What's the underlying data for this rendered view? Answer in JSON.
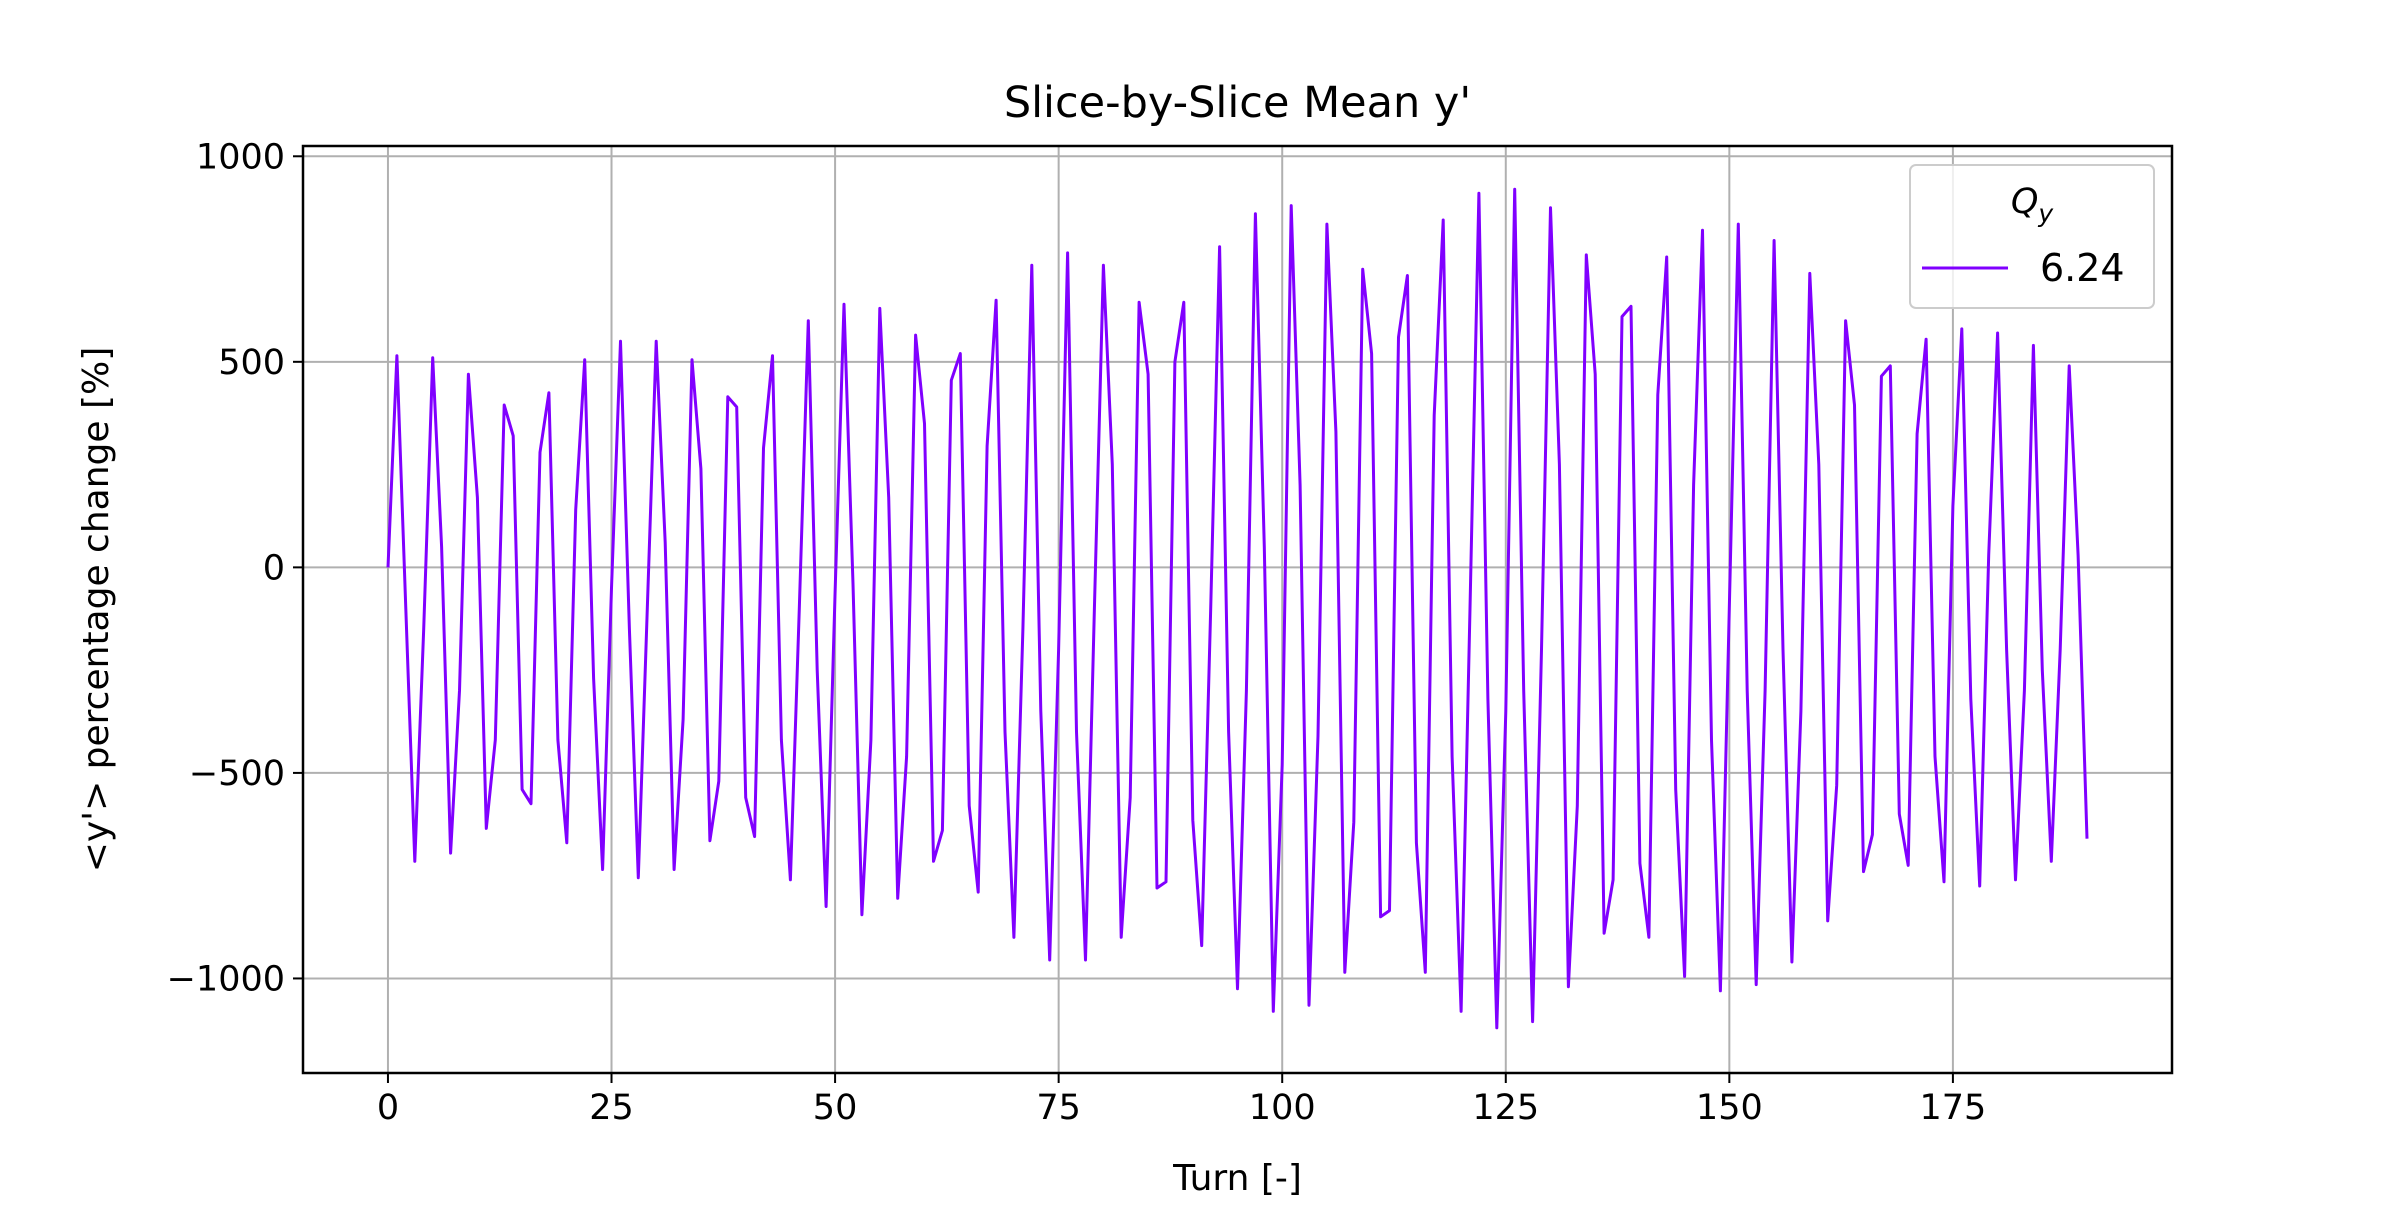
{
  "chart_data": {
    "type": "line",
    "title": "Slice-by-Slice Mean y'",
    "xlabel": "Turn [-]",
    "ylabel": "<y'> percentage change [%]",
    "xlim": [
      -9.5,
      199.5
    ],
    "ylim": [
      -1230,
      1025
    ],
    "xticks": [
      0,
      25,
      50,
      75,
      100,
      125,
      150,
      175
    ],
    "yticks": [
      -1000,
      -500,
      0,
      500,
      1000
    ],
    "xtick_labels": [
      "0",
      "25",
      "50",
      "75",
      "100",
      "125",
      "150",
      "175"
    ],
    "ytick_labels": [
      "−1000",
      "−500",
      "0",
      "500",
      "1000"
    ],
    "grid": true,
    "legend": {
      "placement": "top-right",
      "title_main": "Q",
      "title_sub": "y",
      "entries": [
        "6.24"
      ]
    },
    "series": [
      {
        "name": "6.24",
        "color": "#8000ff",
        "x": [
          0,
          1,
          2,
          3,
          4,
          5,
          6,
          7,
          8,
          9,
          10,
          11,
          12,
          13,
          14,
          15,
          16,
          17,
          18,
          19,
          20,
          21,
          22,
          23,
          24,
          25,
          26,
          27,
          28,
          29,
          30,
          31,
          32,
          33,
          34,
          35,
          36,
          37,
          38,
          39,
          40,
          41,
          42,
          43,
          44,
          45,
          46,
          47,
          48,
          49,
          50,
          51,
          52,
          53,
          54,
          55,
          56,
          57,
          58,
          59,
          60,
          61,
          62,
          63,
          64,
          65,
          66,
          67,
          68,
          69,
          70,
          71,
          72,
          73,
          74,
          75,
          76,
          77,
          78,
          79,
          80,
          81,
          82,
          83,
          84,
          85,
          86,
          87,
          88,
          89,
          90,
          91,
          92,
          93,
          94,
          95,
          96,
          97,
          98,
          99,
          100,
          101,
          102,
          103,
          104,
          105,
          106,
          107,
          108,
          109,
          110,
          111,
          112,
          113,
          114,
          115,
          116,
          117,
          118,
          119,
          120,
          121,
          122,
          123,
          124,
          125,
          126,
          127,
          128,
          129,
          130,
          131,
          132,
          133,
          134,
          135,
          136,
          137,
          138,
          139,
          140,
          141,
          142,
          143,
          144,
          145,
          146,
          147,
          148,
          149,
          150,
          151,
          152,
          153,
          154,
          155,
          156,
          157,
          158,
          159,
          160,
          161,
          162,
          163,
          164,
          165,
          166,
          167,
          168,
          169,
          170,
          171,
          172,
          173,
          174,
          175,
          176,
          177,
          178,
          179,
          180,
          181,
          182,
          183,
          184,
          185,
          186,
          187,
          188,
          189,
          190
        ],
        "y": [
          0,
          515,
          -100,
          -715,
          -150,
          510,
          50,
          -695,
          -300,
          470,
          170,
          -635,
          -420,
          395,
          320,
          -540,
          -575,
          280,
          425,
          -420,
          -670,
          140,
          505,
          -270,
          -735,
          -50,
          550,
          -150,
          -755,
          -100,
          550,
          60,
          -735,
          -370,
          505,
          240,
          -665,
          -520,
          415,
          390,
          -560,
          -655,
          290,
          515,
          -420,
          -760,
          -100,
          600,
          -250,
          -825,
          -60,
          640,
          -40,
          -845,
          -420,
          630,
          170,
          -805,
          -460,
          565,
          350,
          -715,
          -640,
          455,
          520,
          -580,
          -790,
          295,
          650,
          -400,
          -900,
          -150,
          735,
          -350,
          -955,
          -200,
          765,
          -400,
          -955,
          -100,
          735,
          250,
          -900,
          -560,
          645,
          470,
          -780,
          -765,
          500,
          645,
          -615,
          -920,
          -100,
          780,
          -400,
          -1025,
          -300,
          860,
          50,
          -1080,
          -480,
          880,
          200,
          -1065,
          -410,
          835,
          330,
          -985,
          -620,
          725,
          520,
          -850,
          -835,
          560,
          710,
          -670,
          -985,
          370,
          845,
          -460,
          -1080,
          -100,
          910,
          -320,
          -1120,
          -350,
          920,
          -300,
          -1105,
          -200,
          875,
          250,
          -1020,
          -580,
          760,
          470,
          -890,
          -760,
          610,
          635,
          -720,
          -900,
          420,
          755,
          -540,
          -995,
          200,
          820,
          -420,
          -1030,
          -100,
          835,
          -300,
          -1015,
          -300,
          795,
          -200,
          -960,
          -350,
          715,
          250,
          -860,
          -530,
          600,
          395,
          -740,
          -650,
          465,
          490,
          -600,
          -725,
          325,
          555,
          -460,
          -765,
          150,
          580,
          -320,
          -775,
          30,
          570,
          -200,
          -760,
          -300,
          540,
          -250,
          -715,
          -200,
          490,
          30,
          -660
        ]
      }
    ]
  }
}
